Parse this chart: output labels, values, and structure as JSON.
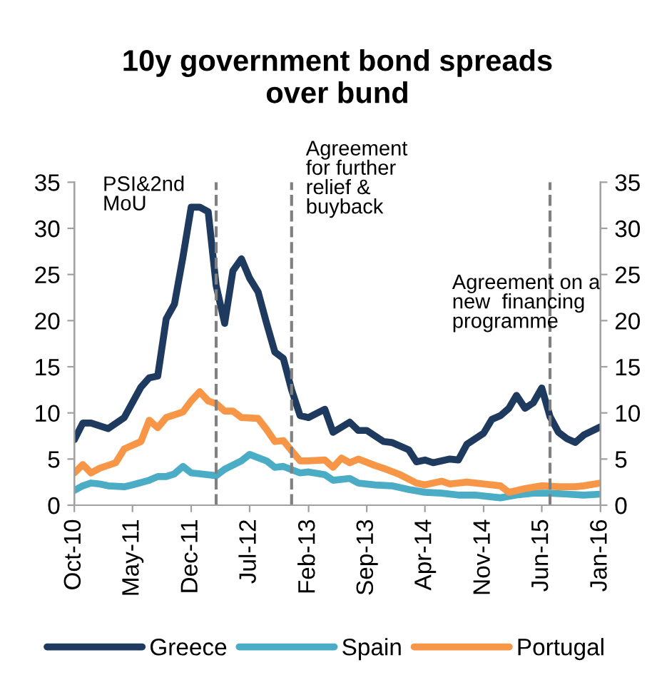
{
  "chart_data": {
    "type": "line",
    "title": "10y government bond spreads\nover bund",
    "series": [
      {
        "name": "Greece",
        "color": "#1f3a5f",
        "x": [
          "2010-10",
          "2010-11",
          "2010-12",
          "2011-02",
          "2011-04",
          "2011-06",
          "2011-07",
          "2011-08",
          "2011-09",
          "2011-10",
          "2011-11",
          "2011-12",
          "2012-01",
          "2012-02",
          "2012-03",
          "2012-04",
          "2012-05",
          "2012-06",
          "2012-07",
          "2012-08",
          "2012-09",
          "2012-10",
          "2012-11",
          "2012-12",
          "2013-01",
          "2013-02",
          "2013-04",
          "2013-05",
          "2013-07",
          "2013-08",
          "2013-09",
          "2013-11",
          "2013-12",
          "2014-02",
          "2014-03",
          "2014-04",
          "2014-05",
          "2014-07",
          "2014-08",
          "2014-09",
          "2014-11",
          "2014-12",
          "2015-01",
          "2015-02",
          "2015-03",
          "2015-04",
          "2015-05",
          "2015-06",
          "2015-07",
          "2015-08",
          "2015-09",
          "2015-10",
          "2015-11",
          "2016-01"
        ],
        "values": [
          7.1,
          8.9,
          8.9,
          8.3,
          9.5,
          12.8,
          13.8,
          14.0,
          20.2,
          21.8,
          26.9,
          32.3,
          32.3,
          31.8,
          23.8,
          19.7,
          25.4,
          26.7,
          24.6,
          23.1,
          19.7,
          16.6,
          15.9,
          12.5,
          9.7,
          9.5,
          10.4,
          7.9,
          9.0,
          8.1,
          8.1,
          6.9,
          6.8,
          6.0,
          4.7,
          4.9,
          4.6,
          5.0,
          4.9,
          6.6,
          7.8,
          9.3,
          9.7,
          10.5,
          11.9,
          10.5,
          11.1,
          12.7,
          9.6,
          7.9,
          7.2,
          6.8,
          7.6,
          8.5
        ]
      },
      {
        "name": "Spain",
        "color": "#4bacc6",
        "x": [
          "2010-10",
          "2010-11",
          "2010-12",
          "2011-01",
          "2011-02",
          "2011-04",
          "2011-05",
          "2011-07",
          "2011-08",
          "2011-09",
          "2011-10",
          "2011-11",
          "2011-12",
          "2012-01",
          "2012-03",
          "2012-04",
          "2012-06",
          "2012-07",
          "2012-09",
          "2012-10",
          "2012-11",
          "2013-01",
          "2013-02",
          "2013-04",
          "2013-05",
          "2013-07",
          "2013-08",
          "2013-10",
          "2013-12",
          "2014-02",
          "2014-04",
          "2014-06",
          "2014-08",
          "2014-10",
          "2014-12",
          "2015-01",
          "2015-03",
          "2015-05",
          "2015-07",
          "2015-09",
          "2015-11",
          "2016-01"
        ],
        "values": [
          1.6,
          2.1,
          2.4,
          2.3,
          2.1,
          2.0,
          2.2,
          2.7,
          3.1,
          3.1,
          3.4,
          4.2,
          3.5,
          3.4,
          3.2,
          3.9,
          4.8,
          5.5,
          4.8,
          4.1,
          4.2,
          3.5,
          3.6,
          3.3,
          2.7,
          2.9,
          2.4,
          2.2,
          2.1,
          1.7,
          1.4,
          1.3,
          1.1,
          1.1,
          0.9,
          0.8,
          1.1,
          1.3,
          1.3,
          1.2,
          1.1,
          1.2
        ]
      },
      {
        "name": "Portugal",
        "color": "#f79646",
        "x": [
          "2010-10",
          "2010-11",
          "2010-12",
          "2011-01",
          "2011-03",
          "2011-04",
          "2011-06",
          "2011-07",
          "2011-08",
          "2011-09",
          "2011-11",
          "2011-12",
          "2012-01",
          "2012-02",
          "2012-03",
          "2012-04",
          "2012-05",
          "2012-06",
          "2012-08",
          "2012-09",
          "2012-10",
          "2012-11",
          "2012-12",
          "2013-01",
          "2013-02",
          "2013-04",
          "2013-05",
          "2013-06",
          "2013-07",
          "2013-08",
          "2013-10",
          "2013-11",
          "2014-01",
          "2014-03",
          "2014-04",
          "2014-06",
          "2014-07",
          "2014-09",
          "2014-11",
          "2015-01",
          "2015-02",
          "2015-04",
          "2015-06",
          "2015-08",
          "2015-10",
          "2015-11",
          "2016-01"
        ],
        "values": [
          3.5,
          4.4,
          3.5,
          4.0,
          4.6,
          6.1,
          6.9,
          9.2,
          8.4,
          9.5,
          10.1,
          11.3,
          12.3,
          11.3,
          11.0,
          10.2,
          10.2,
          9.5,
          9.4,
          8.2,
          6.9,
          7.0,
          5.9,
          4.8,
          4.8,
          4.9,
          4.1,
          5.1,
          4.6,
          5.0,
          4.3,
          4.0,
          3.3,
          2.4,
          2.2,
          2.6,
          2.3,
          2.5,
          2.3,
          2.1,
          1.4,
          1.8,
          2.1,
          2.0,
          2.0,
          2.1,
          2.4
        ]
      }
    ],
    "xlim": [
      "2010-10",
      "2016-01"
    ],
    "xticks": [
      {
        "value": "2010-10",
        "label": "Oct-10"
      },
      {
        "value": "2011-05",
        "label": "May-11"
      },
      {
        "value": "2011-12",
        "label": "Dec-11"
      },
      {
        "value": "2012-07",
        "label": "Jul-12"
      },
      {
        "value": "2013-02",
        "label": "Feb-13"
      },
      {
        "value": "2013-09",
        "label": "Sep-13"
      },
      {
        "value": "2014-04",
        "label": "Apr-14"
      },
      {
        "value": "2014-11",
        "label": "Nov-14"
      },
      {
        "value": "2015-06",
        "label": "Jun-15"
      },
      {
        "value": "2016-01",
        "label": "Jan-16"
      }
    ],
    "ylim": [
      0,
      35
    ],
    "yticks": [
      0,
      5,
      10,
      15,
      20,
      25,
      30,
      35
    ],
    "y2lim": [
      0,
      35
    ],
    "y2ticks": [
      0,
      5,
      10,
      15,
      20,
      25,
      30,
      35
    ],
    "ref_lines": [
      {
        "axis": "x",
        "value": "2012-03",
        "color": "#808080",
        "line_style": "dashed",
        "label": "PSI&2nd\nMoU"
      },
      {
        "axis": "x",
        "value": "2012-12",
        "color": "#808080",
        "line_style": "dashed",
        "label": "Agreement\nfor further\nrelief &\nbuyback"
      },
      {
        "axis": "x",
        "value": "2015-07",
        "color": "#808080",
        "line_style": "dashed",
        "label": "Agreement on a\nnew  financing\nprogramme"
      }
    ],
    "legend": "bottom",
    "grid": false,
    "line_style": "solid",
    "marker": "none"
  }
}
